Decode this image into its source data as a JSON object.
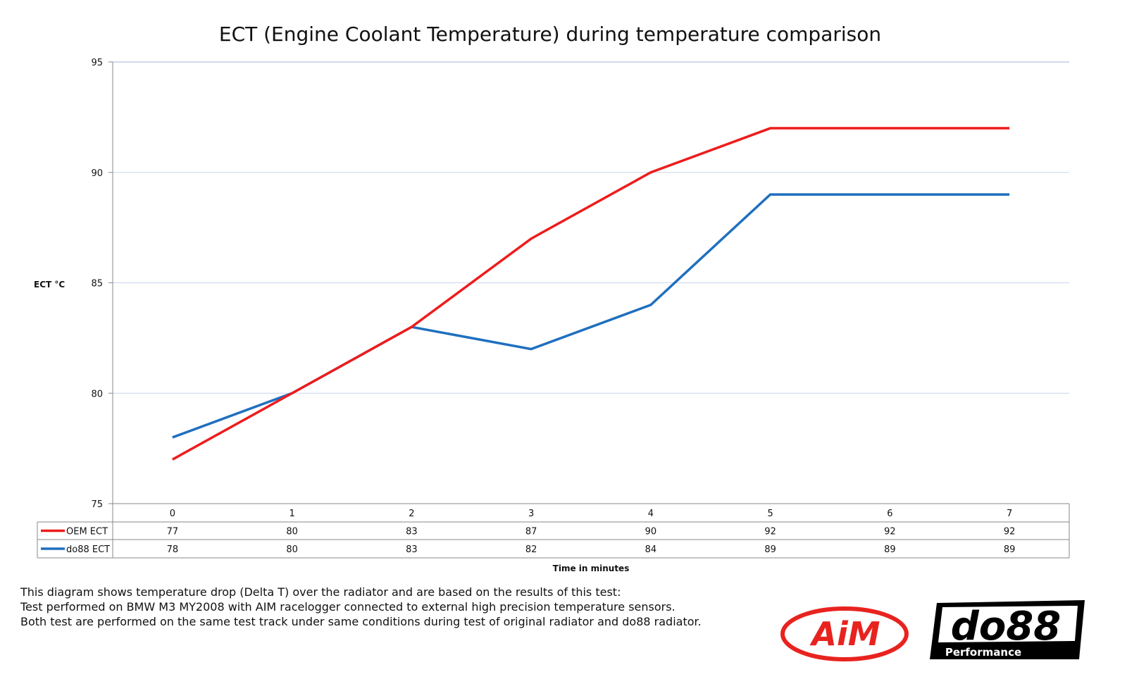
{
  "chart_data": {
    "type": "line",
    "title": "ECT (Engine Coolant Temperature) during temperature comparison",
    "xlabel": "Time in minutes",
    "ylabel": "ECT °C",
    "categories": [
      "0",
      "1",
      "2",
      "3",
      "4",
      "5",
      "6",
      "7"
    ],
    "ylim": [
      75,
      95
    ],
    "yticks": [
      75,
      80,
      85,
      90,
      95
    ],
    "grid": true,
    "legend": "data-table-left",
    "series": [
      {
        "name": "OEM ECT",
        "color": "#ee1c1c",
        "values": [
          77,
          80,
          83,
          87,
          90,
          92,
          92,
          92
        ]
      },
      {
        "name": "do88 ECT",
        "color": "#1f6fbf",
        "values": [
          78,
          80,
          83,
          82,
          84,
          89,
          89,
          89
        ]
      }
    ]
  },
  "caption": [
    "This diagram shows temperature drop (Delta T) over the radiator and are based on the results of this test:",
    "Test performed on BMW M3 MY2008 with AIM racelogger connected to external high precision temperature sensors.",
    "Both test are performed on the same test track under same conditions during test of original radiator and do88 radiator."
  ],
  "logos": {
    "aim": "AiM",
    "do88": "do88",
    "do88_sub": "Performance"
  }
}
